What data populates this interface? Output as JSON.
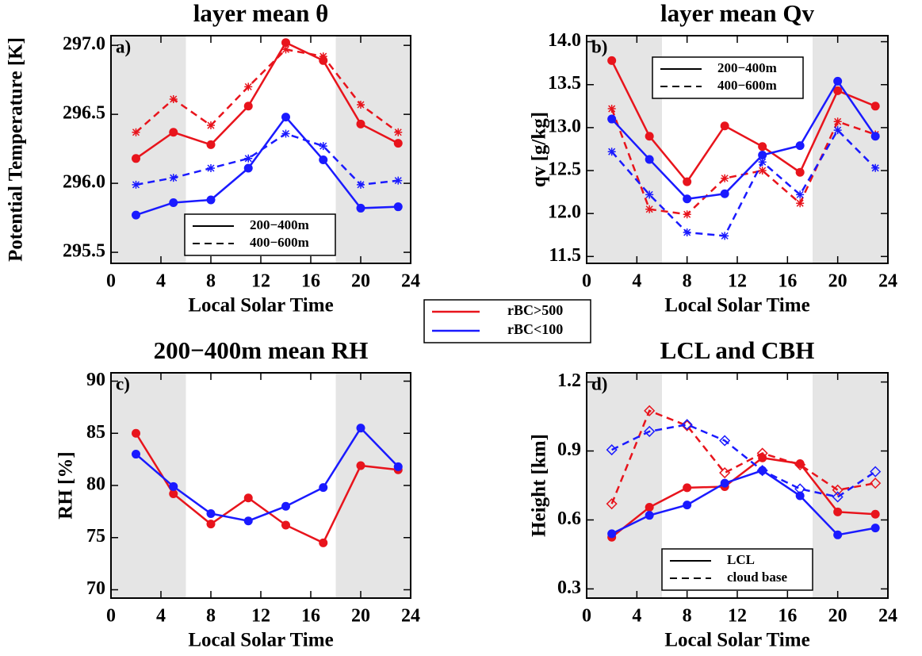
{
  "legend": [
    {
      "label": "rBC>500",
      "color": "#e8141c"
    },
    {
      "label": "rBC<100",
      "color": "#1a1aff"
    }
  ],
  "chart_data": [
    {
      "type": "line",
      "title": "layer mean θ",
      "annotation": "a)",
      "xlabel": "Local Solar Time",
      "ylabel": "Potential Temperature [K]",
      "x": [
        2,
        5,
        8,
        11,
        14,
        17,
        20,
        23
      ],
      "xlim": [
        0,
        24
      ],
      "xticks": [
        0,
        4,
        8,
        12,
        16,
        20,
        24
      ],
      "ylim": [
        295.42,
        297.07
      ],
      "yticks": [
        {
          "value": 295.5,
          "label": "295.5"
        },
        {
          "value": 296.0,
          "label": "296.0"
        },
        {
          "value": 296.5,
          "label": "296.5"
        },
        {
          "value": 297.0,
          "label": "297.0"
        }
      ],
      "shaded": [
        [
          0,
          6
        ],
        [
          18,
          24
        ]
      ],
      "legend_loc": "lower right",
      "legend_entries": [
        {
          "label": "200−400m",
          "dash": "solid"
        },
        {
          "label": "400−600m",
          "dash": "dashed"
        }
      ],
      "series": [
        {
          "color": "#e8141c",
          "dash": "solid",
          "marker": "circle",
          "values": [
            296.18,
            296.37,
            296.28,
            296.56,
            297.02,
            296.89,
            296.43,
            296.29
          ]
        },
        {
          "color": "#e8141c",
          "dash": "dashed",
          "marker": "asterisk",
          "values": [
            296.37,
            296.61,
            296.42,
            296.7,
            296.97,
            296.92,
            296.57,
            296.37
          ]
        },
        {
          "color": "#1a1aff",
          "dash": "solid",
          "marker": "circle",
          "values": [
            295.77,
            295.86,
            295.88,
            296.11,
            296.48,
            296.17,
            295.82,
            295.83
          ]
        },
        {
          "color": "#1a1aff",
          "dash": "dashed",
          "marker": "asterisk",
          "values": [
            295.99,
            296.04,
            296.11,
            296.18,
            296.36,
            296.27,
            295.99,
            296.02
          ]
        }
      ]
    },
    {
      "type": "line",
      "title": "layer mean Qv",
      "annotation": "b)",
      "xlabel": "Local Solar Time",
      "ylabel": "qv [g/kg]",
      "x": [
        2,
        5,
        8,
        11,
        14,
        17,
        20,
        23
      ],
      "xlim": [
        0,
        24
      ],
      "xticks": [
        0,
        4,
        8,
        12,
        16,
        20,
        24
      ],
      "ylim": [
        11.42,
        14.07
      ],
      "yticks": [
        11.5,
        {
          "value": 12.0,
          "label": "12.0"
        },
        12.5,
        {
          "value": 13.0,
          "label": "13.0"
        },
        13.5,
        {
          "value": 14.0,
          "label": "14.0"
        }
      ],
      "shaded": [
        [
          0,
          6
        ],
        [
          18,
          24
        ]
      ],
      "legend_loc": "upper left",
      "legend_entries": [
        {
          "label": "200−400m",
          "dash": "solid"
        },
        {
          "label": "400−600m",
          "dash": "dashed"
        }
      ],
      "series": [
        {
          "color": "#e8141c",
          "dash": "solid",
          "marker": "circle",
          "values": [
            13.78,
            12.9,
            12.37,
            13.02,
            12.78,
            12.48,
            13.43,
            13.25
          ]
        },
        {
          "color": "#e8141c",
          "dash": "dashed",
          "marker": "asterisk",
          "values": [
            13.22,
            12.05,
            11.99,
            12.41,
            12.5,
            12.12,
            13.07,
            12.92
          ]
        },
        {
          "color": "#1a1aff",
          "dash": "solid",
          "marker": "circle",
          "values": [
            13.1,
            12.63,
            12.17,
            12.23,
            12.68,
            12.79,
            13.54,
            12.9
          ]
        },
        {
          "color": "#1a1aff",
          "dash": "dashed",
          "marker": "asterisk",
          "values": [
            12.72,
            12.22,
            11.78,
            11.74,
            12.6,
            12.22,
            12.97,
            12.53
          ]
        }
      ]
    },
    {
      "type": "line",
      "title": "200−400m mean RH",
      "annotation": "c)",
      "xlabel": "Local Solar Time",
      "ylabel": "RH [%]",
      "x": [
        2,
        5,
        8,
        11,
        14,
        17,
        20,
        23
      ],
      "xlim": [
        0,
        24
      ],
      "xticks": [
        0,
        4,
        8,
        12,
        16,
        20,
        24
      ],
      "ylim": [
        69.2,
        90.8
      ],
      "yticks": [
        70,
        75,
        80,
        85,
        90
      ],
      "shaded": [
        [
          0,
          6
        ],
        [
          18,
          24
        ]
      ],
      "series": [
        {
          "color": "#e8141c",
          "dash": "solid",
          "marker": "circle",
          "values": [
            85.0,
            79.2,
            76.3,
            78.8,
            76.2,
            74.5,
            81.9,
            81.5
          ]
        },
        {
          "color": "#1a1aff",
          "dash": "solid",
          "marker": "circle",
          "values": [
            83.0,
            79.9,
            77.3,
            76.6,
            78.0,
            79.8,
            85.5,
            81.8
          ]
        }
      ]
    },
    {
      "type": "line",
      "title": "LCL and CBH",
      "annotation": "d)",
      "xlabel": "Local Solar Time",
      "ylabel": "Height [km]",
      "x": [
        2,
        5,
        8,
        11,
        14,
        17,
        20,
        23
      ],
      "xlim": [
        0,
        24
      ],
      "xticks": [
        0,
        4,
        8,
        12,
        16,
        20,
        24
      ],
      "ylim": [
        0.26,
        1.24
      ],
      "yticks": [
        0.3,
        0.6,
        0.9,
        1.2
      ],
      "shaded": [
        [
          0,
          6
        ],
        [
          18,
          24
        ]
      ],
      "legend_loc": "lower right",
      "legend_entries": [
        {
          "label": "LCL",
          "dash": "solid"
        },
        {
          "label": "cloud base",
          "dash": "dashed"
        }
      ],
      "series": [
        {
          "color": "#e8141c",
          "dash": "solid",
          "marker": "circle",
          "values": [
            0.525,
            0.655,
            0.74,
            0.745,
            0.87,
            0.845,
            0.635,
            0.625
          ]
        },
        {
          "color": "#e8141c",
          "dash": "dashed",
          "marker": "diamond",
          "values": [
            0.67,
            1.075,
            1.01,
            0.805,
            0.89,
            0.84,
            0.73,
            0.76
          ]
        },
        {
          "color": "#1a1aff",
          "dash": "solid",
          "marker": "circle",
          "values": [
            0.54,
            0.62,
            0.665,
            0.76,
            0.815,
            0.705,
            0.535,
            0.565
          ]
        },
        {
          "color": "#1a1aff",
          "dash": "dashed",
          "marker": "diamond",
          "values": [
            0.905,
            0.985,
            1.015,
            0.945,
            0.815,
            0.735,
            0.7,
            0.81
          ]
        }
      ]
    }
  ]
}
